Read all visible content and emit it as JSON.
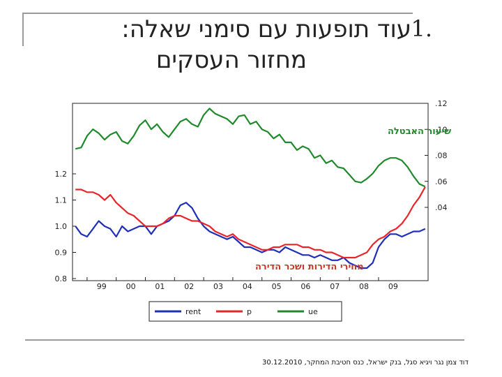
{
  "slide": {
    "number": "1.",
    "title_line1": "עוד תופעות עם סימני שאלה:",
    "title_line2": "מחזור העסקים",
    "footer": "דוד צמן נגר ויגיא סגל, בנק ישראל, כנס חטיבת המחקר, 30.12.2010"
  },
  "chart_data": {
    "type": "line",
    "annotations": [
      "שיעור האבטלה",
      "מחירי הדירות ושכר הדירה"
    ],
    "x_ticks": [
      "99",
      "00",
      "01",
      "02",
      "03",
      "04",
      "05",
      "06",
      "07",
      "08",
      "09"
    ],
    "x_range": [
      1998.5,
      2010.7
    ],
    "left_axis": {
      "ticks": [
        "0.8",
        "0.9",
        "1.0",
        "1.1",
        "1.2"
      ],
      "range": [
        0.8,
        1.2
      ]
    },
    "right_axis": {
      "ticks": [
        ".04",
        ".06",
        ".08",
        ".10",
        ".12"
      ],
      "range": [
        0.04,
        0.12
      ]
    },
    "legend": {
      "placement": "bottom",
      "entries": [
        "rent",
        "p",
        "ue"
      ]
    },
    "colors": {
      "rent": "#1f2fb8",
      "p": "#e8262a",
      "ue": "#1f8a2a"
    },
    "series": [
      {
        "name": "rent",
        "axis": "left",
        "x": [
          1998.6,
          1998.8,
          1999.0,
          1999.2,
          1999.4,
          1999.6,
          1999.8,
          2000.0,
          2000.2,
          2000.4,
          2000.6,
          2000.8,
          2001.0,
          2001.2,
          2001.4,
          2001.6,
          2001.8,
          2002.0,
          2002.2,
          2002.4,
          2002.6,
          2002.8,
          2003.0,
          2003.2,
          2003.4,
          2003.6,
          2003.8,
          2004.0,
          2004.2,
          2004.4,
          2004.6,
          2004.8,
          2005.0,
          2005.2,
          2005.4,
          2005.6,
          2005.8,
          2006.0,
          2006.2,
          2006.4,
          2006.6,
          2006.8,
          2007.0,
          2007.2,
          2007.4,
          2007.6,
          2007.8,
          2008.0,
          2008.2,
          2008.4,
          2008.6,
          2008.8,
          2009.0,
          2009.2,
          2009.4,
          2009.6,
          2009.8,
          2010.0,
          2010.2,
          2010.4,
          2010.6
        ],
        "values": [
          1.0,
          0.97,
          0.96,
          0.99,
          1.02,
          1.0,
          0.99,
          0.96,
          1.0,
          0.98,
          0.99,
          1.0,
          1.0,
          0.97,
          1.0,
          1.01,
          1.02,
          1.04,
          1.08,
          1.09,
          1.07,
          1.03,
          1.0,
          0.98,
          0.97,
          0.96,
          0.95,
          0.96,
          0.94,
          0.92,
          0.92,
          0.91,
          0.9,
          0.91,
          0.91,
          0.9,
          0.92,
          0.91,
          0.9,
          0.89,
          0.89,
          0.88,
          0.89,
          0.88,
          0.87,
          0.87,
          0.88,
          0.86,
          0.85,
          0.84,
          0.84,
          0.86,
          0.92,
          0.95,
          0.97,
          0.97,
          0.96,
          0.97,
          0.98,
          0.98,
          0.99
        ]
      },
      {
        "name": "p",
        "axis": "left",
        "x": [
          1998.6,
          1998.8,
          1999.0,
          1999.2,
          1999.4,
          1999.6,
          1999.8,
          2000.0,
          2000.2,
          2000.4,
          2000.6,
          2000.8,
          2001.0,
          2001.2,
          2001.4,
          2001.6,
          2001.8,
          2002.0,
          2002.2,
          2002.4,
          2002.6,
          2002.8,
          2003.0,
          2003.2,
          2003.4,
          2003.6,
          2003.8,
          2004.0,
          2004.2,
          2004.4,
          2004.6,
          2004.8,
          2005.0,
          2005.2,
          2005.4,
          2005.6,
          2005.8,
          2006.0,
          2006.2,
          2006.4,
          2006.6,
          2006.8,
          2007.0,
          2007.2,
          2007.4,
          2007.6,
          2007.8,
          2008.0,
          2008.2,
          2008.4,
          2008.6,
          2008.8,
          2009.0,
          2009.2,
          2009.4,
          2009.6,
          2009.8,
          2010.0,
          2010.2,
          2010.4,
          2010.6
        ],
        "values": [
          1.14,
          1.14,
          1.13,
          1.13,
          1.12,
          1.1,
          1.12,
          1.09,
          1.07,
          1.05,
          1.04,
          1.02,
          1.0,
          1.0,
          1.0,
          1.01,
          1.03,
          1.04,
          1.04,
          1.03,
          1.02,
          1.02,
          1.01,
          1.0,
          0.98,
          0.97,
          0.96,
          0.97,
          0.95,
          0.94,
          0.93,
          0.92,
          0.91,
          0.91,
          0.92,
          0.92,
          0.93,
          0.93,
          0.93,
          0.92,
          0.92,
          0.91,
          0.91,
          0.9,
          0.9,
          0.89,
          0.88,
          0.88,
          0.88,
          0.89,
          0.9,
          0.93,
          0.95,
          0.96,
          0.98,
          0.99,
          1.01,
          1.04,
          1.08,
          1.11,
          1.15
        ]
      },
      {
        "name": "ue",
        "axis": "right",
        "x": [
          1998.6,
          1998.8,
          1999.0,
          1999.2,
          1999.4,
          1999.6,
          1999.8,
          2000.0,
          2000.2,
          2000.4,
          2000.6,
          2000.8,
          2001.0,
          2001.2,
          2001.4,
          2001.6,
          2001.8,
          2002.0,
          2002.2,
          2002.4,
          2002.6,
          2002.8,
          2003.0,
          2003.2,
          2003.4,
          2003.6,
          2003.8,
          2004.0,
          2004.2,
          2004.4,
          2004.6,
          2004.8,
          2005.0,
          2005.2,
          2005.4,
          2005.6,
          2005.8,
          2006.0,
          2006.2,
          2006.4,
          2006.6,
          2006.8,
          2007.0,
          2007.2,
          2007.4,
          2007.6,
          2007.8,
          2008.0,
          2008.2,
          2008.4,
          2008.6,
          2008.8,
          2009.0,
          2009.2,
          2009.4,
          2009.6,
          2009.8,
          2010.0,
          2010.2,
          2010.4,
          2010.6
        ],
        "values": [
          0.085,
          0.086,
          0.095,
          0.1,
          0.097,
          0.092,
          0.096,
          0.098,
          0.091,
          0.089,
          0.095,
          0.103,
          0.107,
          0.1,
          0.104,
          0.098,
          0.094,
          0.1,
          0.106,
          0.108,
          0.104,
          0.102,
          0.111,
          0.116,
          0.112,
          0.11,
          0.108,
          0.104,
          0.11,
          0.111,
          0.104,
          0.106,
          0.1,
          0.098,
          0.093,
          0.096,
          0.09,
          0.09,
          0.084,
          0.087,
          0.085,
          0.078,
          0.08,
          0.074,
          0.076,
          0.071,
          0.07,
          0.065,
          0.06,
          0.059,
          0.062,
          0.066,
          0.072,
          0.076,
          0.078,
          0.078,
          0.076,
          0.071,
          0.064,
          0.058,
          0.056
        ]
      }
    ]
  }
}
